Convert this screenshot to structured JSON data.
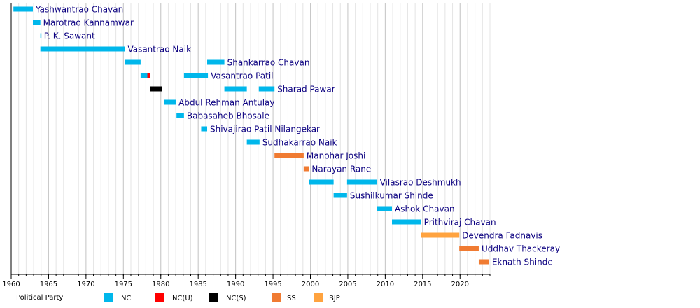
{
  "chart_data": {
    "type": "timeline",
    "categories": [
      "Yashwantrao Chavan",
      "Marotrao Kannamwar",
      "P. K. Sawant",
      "Vasantrao Naik",
      "Shankarrao Chavan",
      "Vasantrao Patil",
      "Sharad Pawar",
      "Abdul Rehman Antulay",
      "Babasaheb Bhosale",
      "Shivajirao Patil Nilangekar",
      "Sudhakarrao Naik",
      "Manohar Joshi",
      "Narayan Rane",
      "Vilasrao Deshmukh",
      "Sushilkumar Shinde",
      "Ashok Chavan",
      "Prithviraj Chavan",
      "Devendra Fadnavis",
      "Uddhav Thackeray",
      "Eknath Shinde"
    ],
    "series": [
      {
        "name": "INC",
        "color": "#00b7eb",
        "values": [
          [
            [
              1960.3,
              1962.9
            ]
          ],
          [
            [
              1962.9,
              1963.9
            ]
          ],
          [
            [
              1963.9,
              1964.0
            ]
          ],
          [
            [
              1963.9,
              1975.2
            ]
          ],
          [
            [
              1975.2,
              1977.3
            ],
            [
              1986.2,
              1988.5
            ]
          ],
          [
            [
              1977.3,
              1978.2
            ],
            [
              1983.1,
              1986.3
            ]
          ],
          [
            [
              1988.5,
              1991.5
            ],
            [
              1993.1,
              1995.2
            ]
          ],
          [
            [
              1980.4,
              1982.0
            ]
          ],
          [
            [
              1982.1,
              1983.1
            ]
          ],
          [
            [
              1985.4,
              1986.2
            ]
          ],
          [
            [
              1991.5,
              1993.2
            ]
          ],
          null,
          null,
          [
            [
              1999.8,
              2003.1
            ],
            [
              2004.9,
              2008.9
            ]
          ],
          [
            [
              2003.1,
              2004.9
            ]
          ],
          [
            [
              2008.9,
              2010.9
            ]
          ],
          [
            [
              2010.9,
              2014.8
            ]
          ],
          null,
          null,
          null
        ]
      },
      {
        "name": "INC(U)",
        "color": "#ff0000",
        "values": [
          null,
          null,
          null,
          null,
          null,
          [
            [
              1978.2,
              1978.6
            ]
          ],
          null,
          null,
          null,
          null,
          null,
          null,
          null,
          null,
          null,
          null,
          null,
          null,
          null,
          null
        ]
      },
      {
        "name": "INC(S)",
        "color": "#000000",
        "values": [
          null,
          null,
          null,
          null,
          null,
          null,
          [
            [
              1978.6,
              1980.2
            ]
          ],
          null,
          null,
          null,
          null,
          null,
          null,
          null,
          null,
          null,
          null,
          null,
          null,
          null
        ]
      },
      {
        "name": "SS",
        "color": "#f07b32",
        "values": [
          null,
          null,
          null,
          null,
          null,
          null,
          null,
          null,
          null,
          null,
          null,
          [
            [
              1995.2,
              1999.1
            ]
          ],
          [
            [
              1999.1,
              1999.8
            ]
          ],
          null,
          null,
          null,
          null,
          null,
          [
            [
              2019.9,
              2022.5
            ]
          ],
          [
            [
              2022.5,
              2023.9
            ]
          ]
        ]
      },
      {
        "name": "BJP",
        "color": "#ffa33f",
        "values": [
          null,
          null,
          null,
          null,
          null,
          null,
          null,
          null,
          null,
          null,
          null,
          null,
          null,
          null,
          null,
          null,
          null,
          [
            [
              2014.8,
              2019.9
            ]
          ],
          null,
          null
        ]
      }
    ],
    "xlim": [
      1960,
      2024
    ],
    "xticks": [
      1960,
      1965,
      1970,
      1975,
      1980,
      1985,
      1990,
      1995,
      2000,
      2005,
      2010,
      2015,
      2020
    ],
    "minor_tick_step": 1,
    "grid": true,
    "legend_title": "Political Party"
  }
}
